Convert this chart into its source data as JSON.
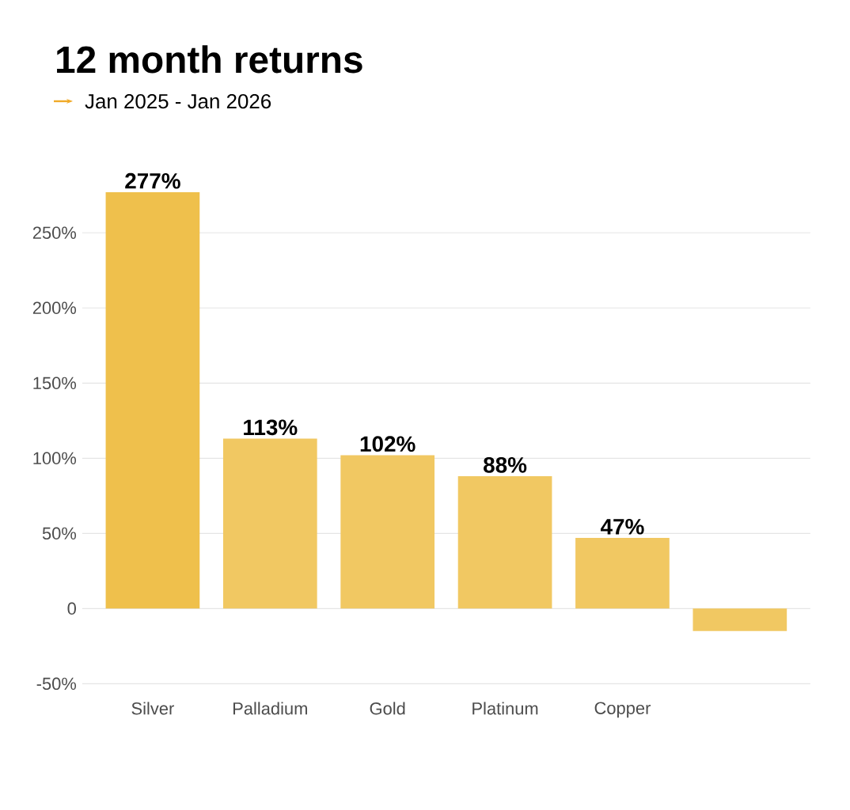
{
  "chart_data": {
    "type": "bar",
    "title": "12 month returns",
    "subtitle": "Jan 2025 - Jan 2026",
    "categories": [
      "Silver",
      "Palladium",
      "Gold",
      "Platinum",
      "Copper",
      null
    ],
    "values": [
      277,
      113,
      102,
      88,
      47,
      -15
    ],
    "colors": [
      "#efc04c",
      "#f1c862",
      "#f1c862",
      "#f1c862",
      "#f1c862",
      "#f1c862"
    ],
    "value_labels": [
      "277%",
      "113%",
      "102%",
      "88%",
      "47%",
      null
    ],
    "ylim": [
      -50,
      277
    ],
    "yticks": [
      {
        "value": -50,
        "label": "-50%"
      },
      {
        "value": 0,
        "label": "0"
      },
      {
        "value": 50,
        "label": "50%"
      },
      {
        "value": 100,
        "label": "100%"
      },
      {
        "value": 150,
        "label": "150%"
      },
      {
        "value": 200,
        "label": "200%"
      },
      {
        "value": 250,
        "label": "250%"
      }
    ],
    "grid": "y"
  }
}
